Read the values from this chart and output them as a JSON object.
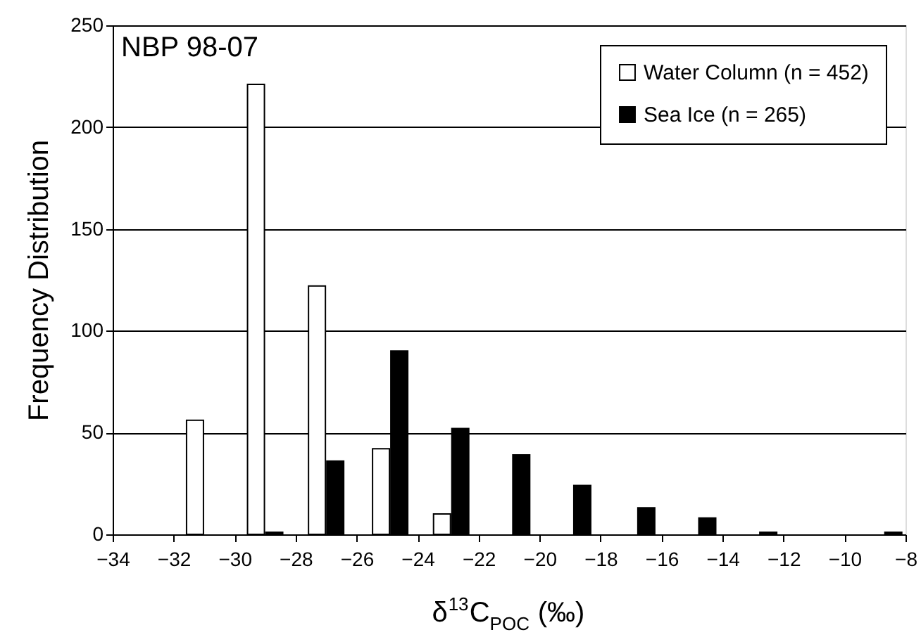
{
  "chart_data": {
    "type": "bar",
    "title": "NBP 98-07",
    "xlabel": "δ$^{13}$C$_{POC}$ (‰)",
    "ylabel": "Frequency Distribution",
    "xlim": [
      -34,
      -8
    ],
    "xticks": [
      -34,
      -32,
      -30,
      -28,
      -26,
      -24,
      -22,
      -20,
      -18,
      -16,
      -14,
      -12,
      -10,
      -8
    ],
    "ylim": [
      0,
      250
    ],
    "yticks": [
      0,
      50,
      100,
      150,
      200,
      250
    ],
    "grid": "y",
    "legend": "top right",
    "series": [
      {
        "name": "Water Column (n = 452)",
        "color": "#ffffff",
        "x": [
          -31.3,
          -29.3,
          -27.3,
          -25.2,
          -23.2
        ],
        "values": [
          56,
          221,
          122,
          42,
          10
        ]
      },
      {
        "name": "Sea Ice (n = 265)",
        "color": "#000000",
        "x": [
          -28.7,
          -26.7,
          -24.6,
          -22.6,
          -20.6,
          -18.6,
          -16.5,
          -14.5,
          -12.5,
          -8.4
        ],
        "values": [
          1,
          36,
          90,
          52,
          39,
          24,
          13,
          8,
          1,
          1
        ]
      }
    ]
  }
}
